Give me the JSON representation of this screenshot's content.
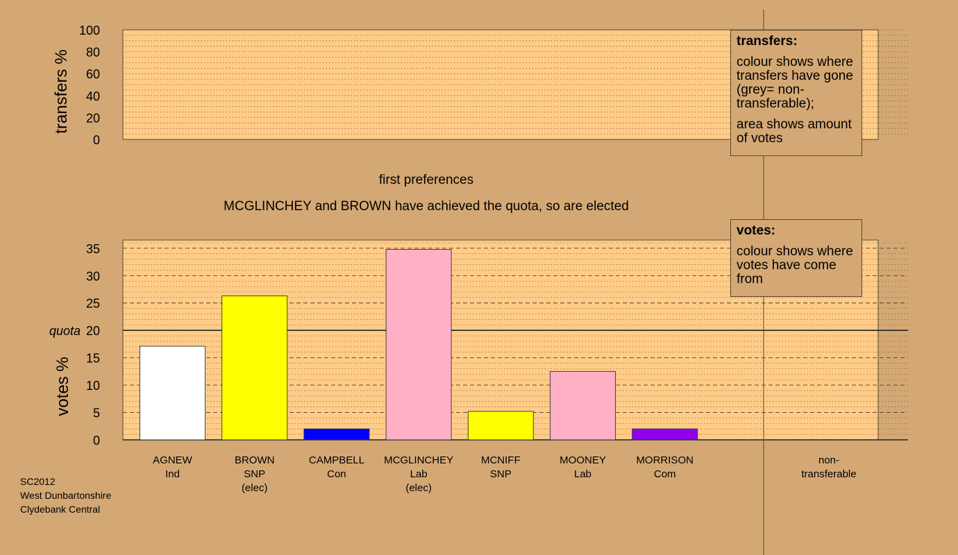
{
  "chart_data": [
    {
      "type": "bar",
      "panel": "transfers",
      "ylabel": "transfers %",
      "ylim": [
        0,
        100
      ],
      "yticks": [
        0,
        20,
        40,
        60,
        80,
        100
      ],
      "categories": [],
      "values": []
    },
    {
      "type": "bar",
      "panel": "votes",
      "title": "first preferences",
      "subtitle": "MCGLINCHEY and BROWN have achieved the quota, so are elected",
      "ylabel": "votes %",
      "ylim": [
        0,
        36.5
      ],
      "yticks": [
        0,
        5,
        10,
        15,
        20,
        25,
        30,
        35
      ],
      "quota": 20,
      "quota_label": "quota",
      "categories": [
        "AGNEW",
        "BROWN",
        "CAMPBELL",
        "MCGLINCHEY",
        "MCNIFF",
        "MOONEY",
        "MORRISON",
        "non-transferable"
      ],
      "candidates": [
        {
          "name": "AGNEW",
          "party": "Ind",
          "status": "",
          "value": 17.1,
          "color": "#ffffff"
        },
        {
          "name": "BROWN",
          "party": "SNP",
          "status": "(elec)",
          "value": 26.3,
          "color": "#ffff00"
        },
        {
          "name": "CAMPBELL",
          "party": "Con",
          "status": "",
          "value": 2.0,
          "color": "#0000ff"
        },
        {
          "name": "MCGLINCHEY",
          "party": "Lab",
          "status": "(elec)",
          "value": 34.8,
          "color": "#ffb0c4"
        },
        {
          "name": "MCNIFF",
          "party": "SNP",
          "status": "",
          "value": 5.2,
          "color": "#ffff00"
        },
        {
          "name": "MOONEY",
          "party": "Lab",
          "status": "",
          "value": 12.5,
          "color": "#ffb0c4"
        },
        {
          "name": "MORRISON",
          "party": "Com",
          "status": "",
          "value": 2.0,
          "color": "#9000ee"
        }
      ],
      "nontransferable": {
        "line1": "non-",
        "line2": "transferable",
        "value": 0
      }
    }
  ],
  "legend_transfers": {
    "title": "transfers:",
    "p1": "colour shows where transfers have gone (grey= non-transferable);",
    "p2": "area shows amount of votes"
  },
  "legend_votes": {
    "title": "votes:",
    "p1": "colour shows where votes have come from"
  },
  "footer": {
    "line1": "SC2012",
    "line2": "West Dunbartonshire",
    "line3": "Clydebank Central"
  },
  "colors": {
    "background": "#d4a874",
    "plot": "#ffcc88"
  }
}
